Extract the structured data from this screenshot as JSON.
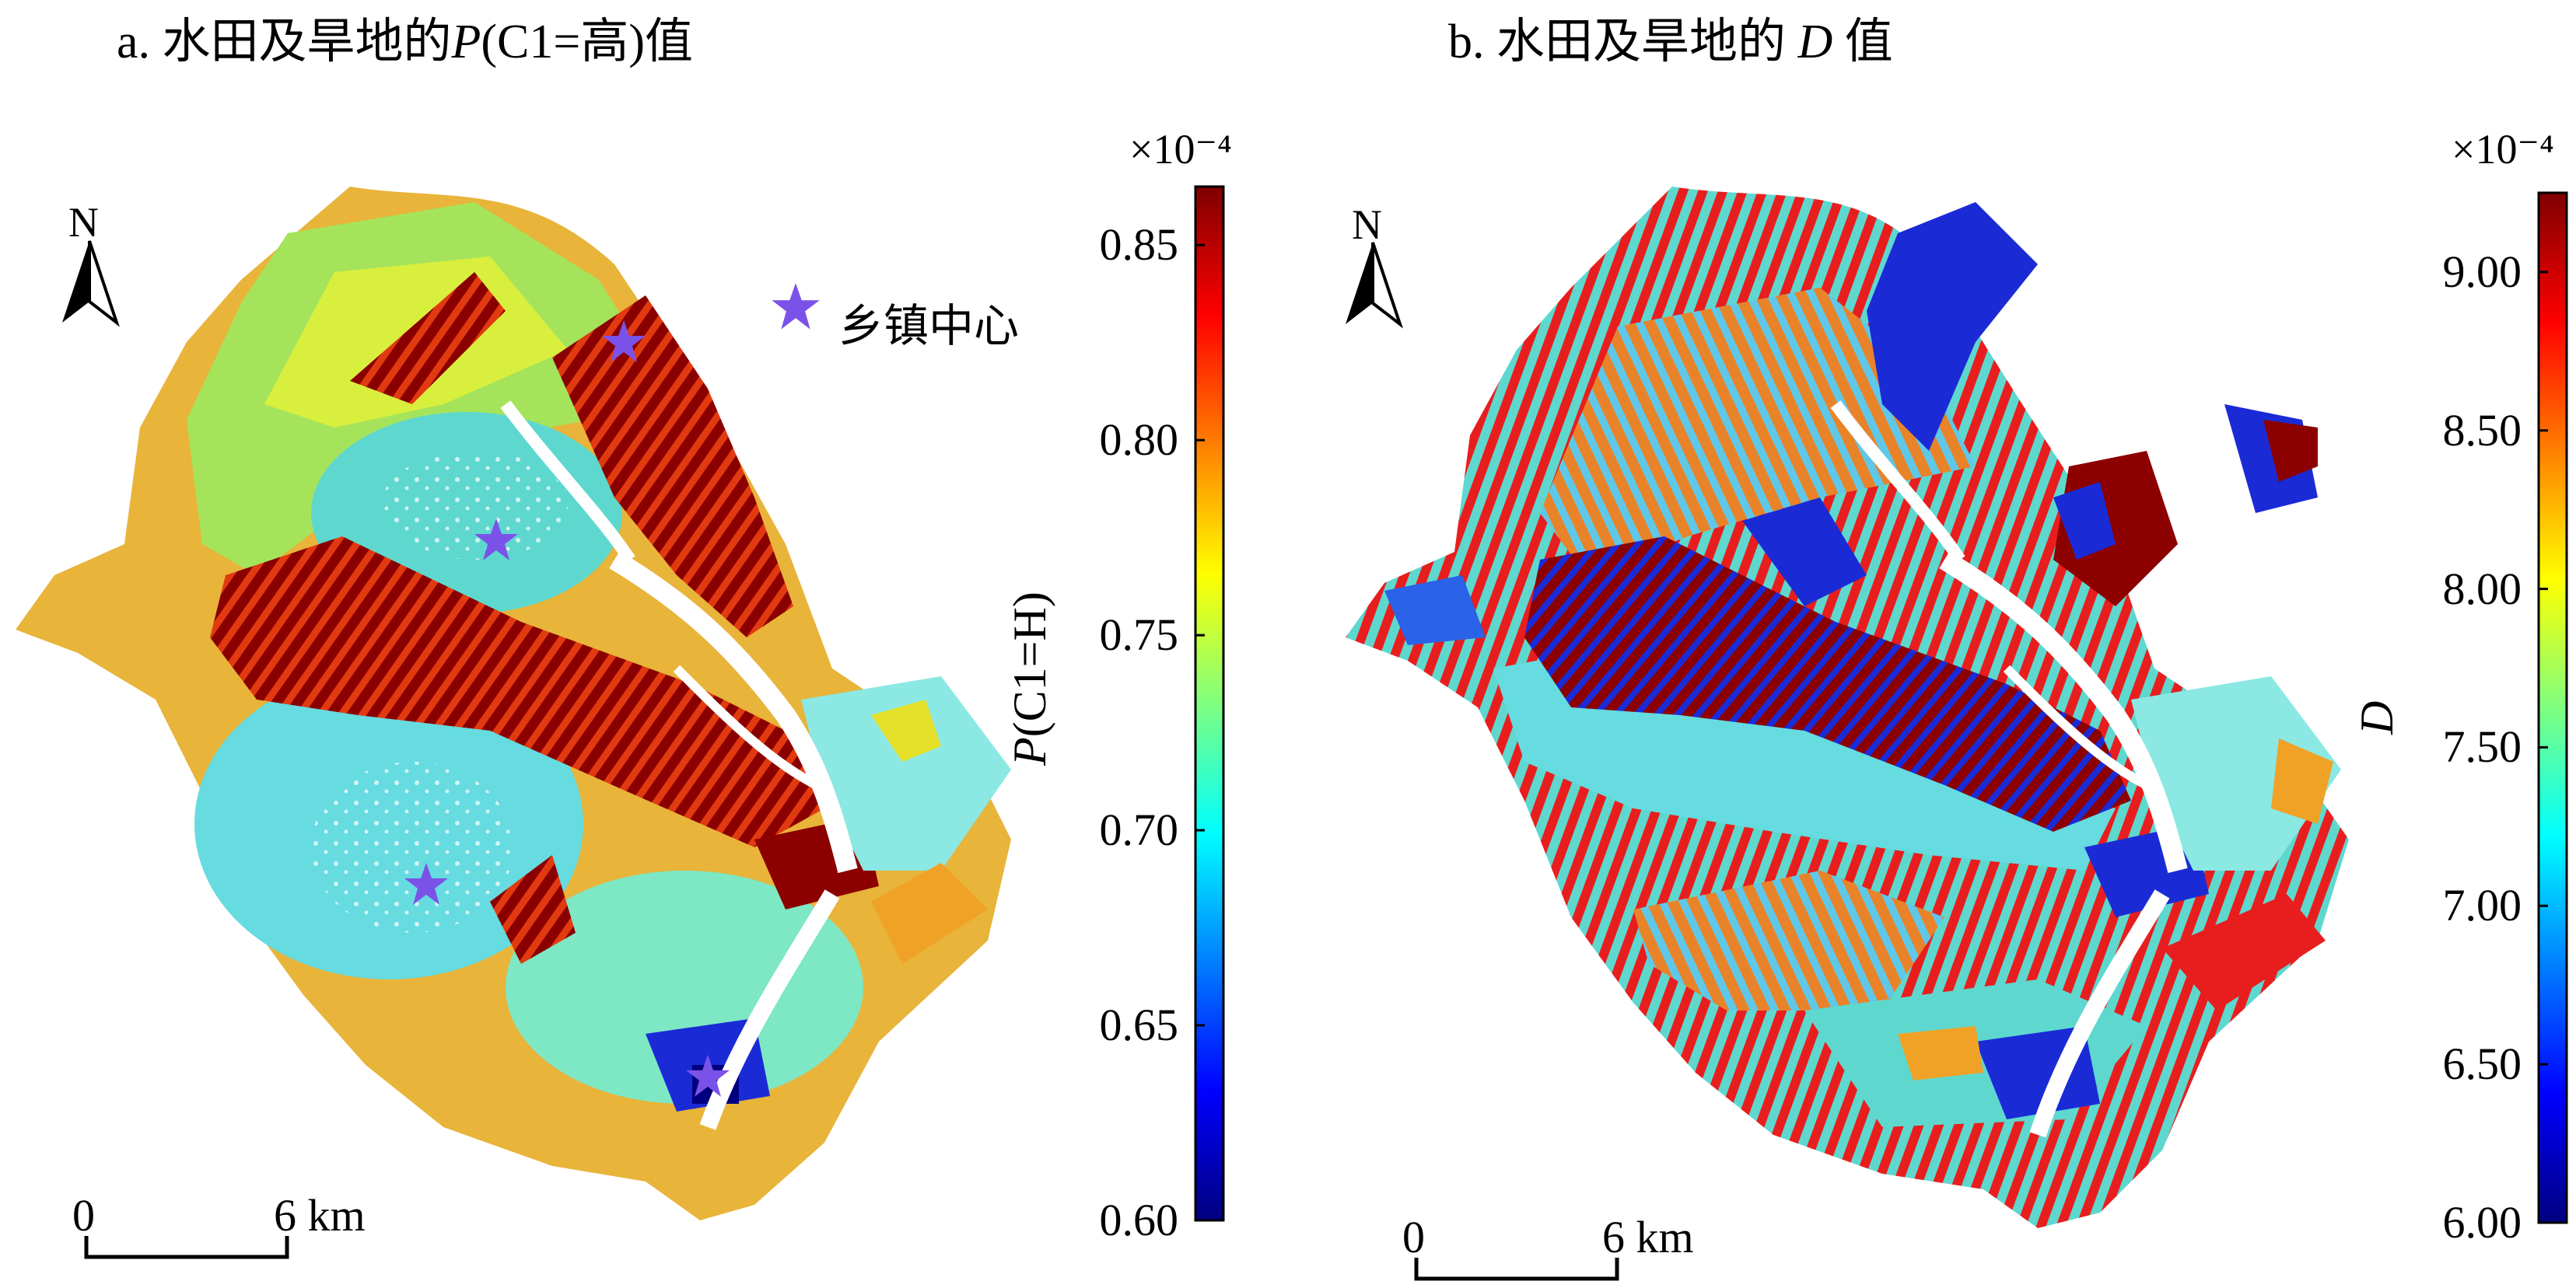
{
  "panels": [
    {
      "id": "a",
      "title_prefix": "a. 水田及旱地的",
      "title_italic": "P",
      "title_suffix": "(C1=高)值",
      "north": "N",
      "scale": {
        "start": "0",
        "end": "6 km"
      },
      "legend": {
        "label": "乡镇中心",
        "color": "#7b52e8"
      },
      "colorbar": {
        "multiplier": "×10⁻⁴",
        "axis_label_italic": "P",
        "axis_label_rest": "(C1=H)",
        "ticks": [
          "0.85",
          "0.80",
          "0.75",
          "0.70",
          "0.65",
          "0.60"
        ],
        "range": [
          0.6,
          0.865
        ],
        "colormap": "jet"
      }
    },
    {
      "id": "b",
      "title_prefix": "b. 水田及旱地的 ",
      "title_italic": "D",
      "title_suffix": " 值",
      "north": "N",
      "scale": {
        "start": "0",
        "end": "6 km"
      },
      "colorbar": {
        "multiplier": "×10⁻⁴",
        "axis_label_italic": "D",
        "ticks": [
          "9.00",
          "8.50",
          "8.00",
          "7.50",
          "7.00",
          "6.50",
          "6.00"
        ],
        "range": [
          6.0,
          9.25
        ],
        "colormap": "jet"
      }
    }
  ],
  "jet_colors": [
    "#00007f",
    "#0000ff",
    "#007fff",
    "#00ffff",
    "#7fff7f",
    "#ffff00",
    "#ff7f00",
    "#ff0000",
    "#7f0000"
  ],
  "town_centers": [
    {
      "name": "乡镇中心"
    },
    {
      "name": "乡镇中心"
    },
    {
      "name": "乡镇中心"
    },
    {
      "name": "乡镇中心"
    }
  ]
}
